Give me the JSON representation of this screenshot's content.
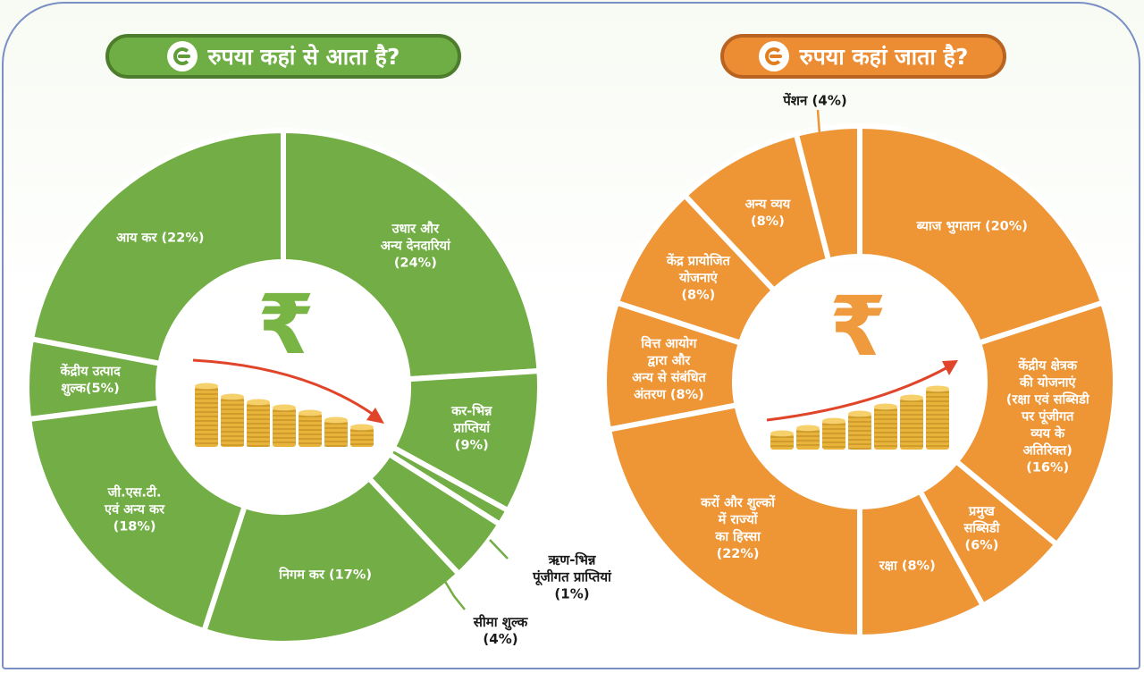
{
  "headers": {
    "left": "रुपया कहां से आता है?",
    "right": "रुपया कहां जाता है?"
  },
  "center_symbol": "₹",
  "colors": {
    "green": "#72ae45",
    "green_dark": "#4c7c2c",
    "orange": "#ee9536",
    "orange_dark": "#b96320",
    "rupee_green": "#78b544",
    "rupee_orange": "#ef9a3c",
    "coin": "#e8b33a",
    "arrow": "#e0452a"
  },
  "chart_data": [
    {
      "type": "pie",
      "donut": true,
      "title": "रुपया कहां से आता है?",
      "categories": [
        "उधार और अन्य देनदारियां",
        "कर-भिन्न प्राप्तियां",
        "ऋण-भिन्न पूंजीगत प्राप्तियां",
        "सीमा शुल्क",
        "निगम कर",
        "जी.एस.टी. एवं अन्य कर",
        "केंद्रीय उत्पाद शुल्क",
        "आय कर"
      ],
      "values": [
        24,
        9,
        1,
        4,
        17,
        18,
        5,
        22
      ],
      "labels": [
        "उधार और\nअन्य देनदारियां\n(24%)",
        "कर-भिन्न\nप्राप्तियां\n(9%)",
        "ऋण-भिन्न\nपूंजीगत प्राप्तियां\n(1%)",
        "सीमा शुल्क\n(4%)",
        "निगम कर (17%)",
        "जी.एस.टी.\nएवं अन्य कर\n(18%)",
        "केंद्रीय उत्पाद\nशुल्क(5%)",
        "आय कर (22%)"
      ],
      "unit": "%"
    },
    {
      "type": "pie",
      "donut": true,
      "title": "रुपया कहां जाता है?",
      "categories": [
        "ब्याज भुगतान",
        "केंद्रीय क्षेत्रक की योजनाएं (रक्षा एवं सब्सिडी पर पूंजीगत व्यय के अतिरिक्त)",
        "प्रमुख सब्सिडी",
        "रक्षा",
        "करों और शुल्कों में राज्यों का हिस्सा",
        "वित्त आयोग द्वारा और अन्य से संबंधित अंतरण",
        "केंद्र प्रायोजित योजनाएं",
        "अन्य व्यय",
        "पेंशन"
      ],
      "values": [
        20,
        16,
        6,
        8,
        22,
        8,
        8,
        8,
        4
      ],
      "labels": [
        "ब्याज भुगतान (20%)",
        "केंद्रीय क्षेत्रक\nकी योजनाएं\n(रक्षा एवं सब्सिडी\nपर पूंजीगत\nव्यय के\nअतिरिक्त)\n(16%)",
        "प्रमुख\nसब्सिडी\n(6%)",
        "रक्षा (8%)",
        "करों और शुल्कों\nमें राज्यों\nका हिस्सा\n(22%)",
        "वित्त आयोग\nद्वारा और\nअन्य से संबंधित\nअंतरण (8%)",
        "केंद्र प्रायोजित\nयोजनाएं\n(8%)",
        "अन्य व्यय\n(8%)",
        "पेंशन (4%)"
      ],
      "unit": "%"
    }
  ]
}
